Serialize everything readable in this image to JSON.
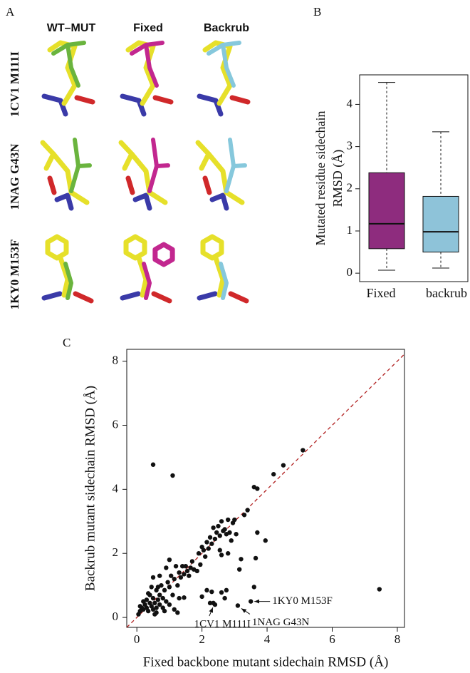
{
  "panel_a": {
    "panel_label": "A",
    "columns": [
      "WT–MUT",
      "Fixed",
      "Backrub"
    ],
    "rows": [
      "1CV1 M111I",
      "1NAG G43N",
      "1KY0 M153F"
    ]
  },
  "chart_data": [
    {
      "type": "box",
      "panel_label": "B",
      "y_label": [
        "Mutated residue sidechain",
        "RMSD (Å)"
      ],
      "categories": [
        "Fixed",
        "backrub"
      ],
      "colors": [
        "#8e2c7e",
        "#8ec3d9"
      ],
      "min": [
        0.07,
        0.12
      ],
      "q1": [
        0.58,
        0.5
      ],
      "median": [
        1.17,
        0.98
      ],
      "q3": [
        2.38,
        1.82
      ],
      "max": [
        4.52,
        3.35
      ],
      "ylim": [
        -0.2,
        4.7
      ],
      "yticks": [
        0,
        1,
        2,
        3,
        4
      ]
    },
    {
      "type": "scatter",
      "panel_label": "C",
      "x_label": "Fixed backbone mutant sidechain RMSD (Å)",
      "y_label": "Backrub mutant sidechain RMSD (Å)",
      "color": "#111111",
      "diagonal_color": "#b22222",
      "x": [
        0.5,
        1.1,
        5.1,
        4.5,
        4.2,
        3.6,
        3.7,
        3.4,
        3.3,
        3.95,
        3.65,
        3.7,
        3.2,
        3.15,
        3.6,
        3.5,
        3.1,
        2.4,
        7.45,
        2.7,
        2.3,
        2.6,
        2.75,
        2.15,
        2.0,
        1.3,
        1.45,
        2.25,
        2.35,
        2.8,
        2.9,
        3.05,
        2.55,
        2.6,
        0.05,
        0.1,
        0.15,
        0.2,
        0.25,
        0.3,
        0.3,
        0.35,
        0.4,
        0.4,
        0.45,
        0.5,
        0.5,
        0.55,
        0.6,
        0.6,
        0.65,
        0.7,
        0.7,
        0.75,
        0.8,
        0.8,
        0.85,
        0.9,
        0.95,
        1.0,
        1.0,
        1.05,
        1.1,
        1.15,
        1.2,
        1.25,
        1.3,
        1.35,
        1.4,
        1.45,
        1.5,
        1.55,
        1.6,
        1.65,
        1.7,
        1.75,
        1.85,
        1.9,
        1.95,
        2.0,
        2.05,
        2.1,
        2.15,
        2.2,
        2.25,
        2.3,
        2.35,
        2.4,
        2.45,
        2.5,
        2.55,
        2.6,
        2.65,
        2.7,
        2.75,
        2.8,
        2.85,
        2.95,
        3.0,
        1.0,
        1.15,
        0.7,
        0.9,
        0.2,
        0.1,
        0.6,
        0.45,
        0.35,
        0.5,
        0.65,
        0.85,
        1.25,
        0.55
      ],
      "y": [
        4.77,
        4.43,
        5.22,
        4.75,
        4.47,
        4.07,
        4.02,
        3.35,
        3.2,
        2.4,
        1.85,
        2.65,
        1.82,
        1.5,
        0.95,
        0.5,
        0.37,
        0.4,
        0.88,
        0.6,
        0.8,
        0.78,
        0.85,
        0.85,
        0.65,
        0.6,
        0.62,
        0.45,
        0.45,
        2.0,
        2.4,
        2.6,
        2.1,
        1.95,
        0.1,
        0.2,
        0.3,
        0.25,
        0.4,
        0.3,
        0.55,
        0.2,
        0.45,
        0.7,
        0.35,
        0.6,
        0.25,
        0.45,
        0.85,
        0.3,
        0.55,
        0.7,
        0.4,
        1.0,
        0.6,
        0.3,
        0.85,
        0.5,
        1.1,
        0.95,
        0.4,
        1.3,
        0.7,
        1.2,
        1.6,
        1.0,
        1.4,
        1.25,
        1.6,
        1.35,
        1.6,
        1.45,
        1.3,
        1.55,
        1.75,
        1.5,
        1.45,
        2.0,
        1.65,
        2.2,
        2.1,
        1.9,
        2.35,
        2.15,
        2.5,
        2.3,
        2.8,
        2.45,
        2.65,
        2.85,
        2.55,
        3.0,
        2.7,
        2.75,
        2.6,
        3.05,
        2.65,
        2.95,
        3.05,
        1.8,
        0.25,
        1.3,
        1.55,
        0.5,
        0.35,
        0.15,
        0.95,
        0.75,
        1.25,
        0.95,
        0.2,
        0.15,
        0.1
      ],
      "xlim": [
        -0.31,
        8.22
      ],
      "ylim": [
        -0.31,
        8.37
      ],
      "xticks": [
        0,
        2,
        4,
        6,
        8
      ],
      "yticks": [
        0,
        2,
        4,
        6,
        8
      ],
      "annotations": [
        {
          "text": "1KY0 M153F",
          "x": 3.5,
          "y": 0.5
        },
        {
          "text": "1NAG G43N",
          "x": 3.1,
          "y": 0.37
        },
        {
          "text": "1CV1 M111I",
          "x": 2.4,
          "y": 0.4
        }
      ]
    }
  ]
}
